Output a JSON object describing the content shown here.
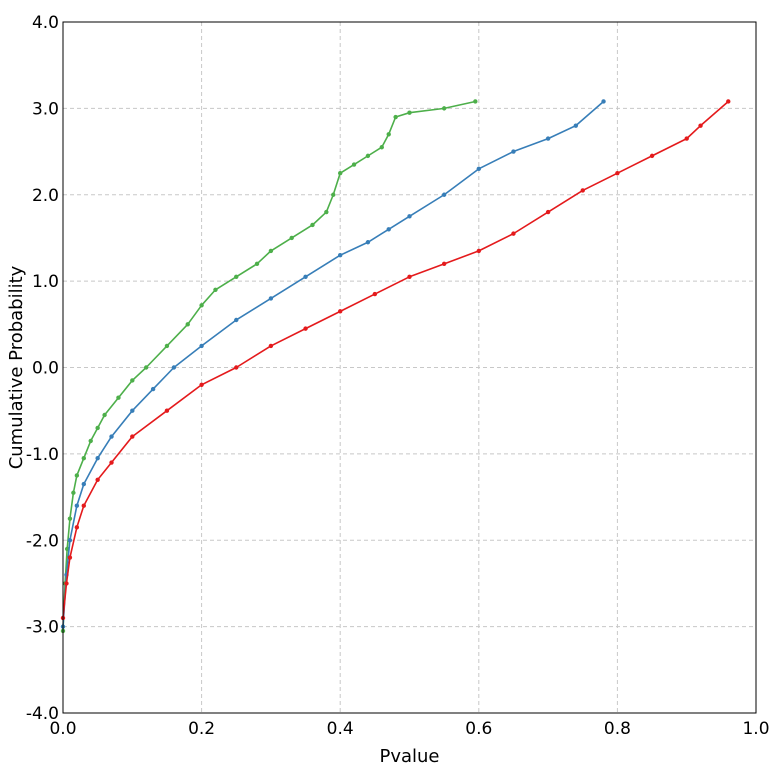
{
  "chart_data": {
    "type": "line",
    "xlabel": "Pvalue",
    "ylabel": "Cumulative Probability",
    "xlim": [
      0.0,
      1.0
    ],
    "ylim": [
      -4.0,
      4.0
    ],
    "x_ticks": [
      "0.0",
      "0.2",
      "0.4",
      "0.6",
      "0.8",
      "1.0"
    ],
    "y_ticks": [
      "-4.0",
      "-3.0",
      "-2.0",
      "-1.0",
      "0.0",
      "1.0",
      "2.0",
      "3.0",
      "4.0"
    ],
    "grid": true,
    "series": [
      {
        "color": "#4daf4a",
        "points": [
          [
            0.0,
            -3.05
          ],
          [
            0.003,
            -2.5
          ],
          [
            0.006,
            -2.1
          ],
          [
            0.01,
            -1.75
          ],
          [
            0.015,
            -1.45
          ],
          [
            0.02,
            -1.25
          ],
          [
            0.03,
            -1.05
          ],
          [
            0.04,
            -0.85
          ],
          [
            0.05,
            -0.7
          ],
          [
            0.06,
            -0.55
          ],
          [
            0.08,
            -0.35
          ],
          [
            0.1,
            -0.15
          ],
          [
            0.12,
            0.0
          ],
          [
            0.15,
            0.25
          ],
          [
            0.18,
            0.5
          ],
          [
            0.2,
            0.72
          ],
          [
            0.22,
            0.9
          ],
          [
            0.25,
            1.05
          ],
          [
            0.28,
            1.2
          ],
          [
            0.3,
            1.35
          ],
          [
            0.33,
            1.5
          ],
          [
            0.36,
            1.65
          ],
          [
            0.38,
            1.8
          ],
          [
            0.39,
            2.0
          ],
          [
            0.4,
            2.25
          ],
          [
            0.42,
            2.35
          ],
          [
            0.44,
            2.45
          ],
          [
            0.46,
            2.55
          ],
          [
            0.47,
            2.7
          ],
          [
            0.48,
            2.9
          ],
          [
            0.5,
            2.95
          ],
          [
            0.55,
            3.0
          ],
          [
            0.595,
            3.08
          ]
        ]
      },
      {
        "color": "#377eb8",
        "points": [
          [
            0.0,
            -3.0
          ],
          [
            0.005,
            -2.4
          ],
          [
            0.01,
            -2.0
          ],
          [
            0.02,
            -1.6
          ],
          [
            0.03,
            -1.35
          ],
          [
            0.05,
            -1.05
          ],
          [
            0.07,
            -0.8
          ],
          [
            0.1,
            -0.5
          ],
          [
            0.13,
            -0.25
          ],
          [
            0.16,
            0.0
          ],
          [
            0.2,
            0.25
          ],
          [
            0.25,
            0.55
          ],
          [
            0.3,
            0.8
          ],
          [
            0.35,
            1.05
          ],
          [
            0.4,
            1.3
          ],
          [
            0.44,
            1.45
          ],
          [
            0.47,
            1.6
          ],
          [
            0.5,
            1.75
          ],
          [
            0.55,
            2.0
          ],
          [
            0.6,
            2.3
          ],
          [
            0.65,
            2.5
          ],
          [
            0.7,
            2.65
          ],
          [
            0.74,
            2.8
          ],
          [
            0.78,
            3.08
          ]
        ]
      },
      {
        "color": "#e41a1c",
        "points": [
          [
            0.0,
            -2.9
          ],
          [
            0.005,
            -2.5
          ],
          [
            0.01,
            -2.2
          ],
          [
            0.02,
            -1.85
          ],
          [
            0.03,
            -1.6
          ],
          [
            0.05,
            -1.3
          ],
          [
            0.07,
            -1.1
          ],
          [
            0.1,
            -0.8
          ],
          [
            0.15,
            -0.5
          ],
          [
            0.2,
            -0.2
          ],
          [
            0.25,
            0.0
          ],
          [
            0.3,
            0.25
          ],
          [
            0.35,
            0.45
          ],
          [
            0.4,
            0.65
          ],
          [
            0.45,
            0.85
          ],
          [
            0.5,
            1.05
          ],
          [
            0.55,
            1.2
          ],
          [
            0.6,
            1.35
          ],
          [
            0.65,
            1.55
          ],
          [
            0.7,
            1.8
          ],
          [
            0.75,
            2.05
          ],
          [
            0.8,
            2.25
          ],
          [
            0.85,
            2.45
          ],
          [
            0.9,
            2.65
          ],
          [
            0.92,
            2.8
          ],
          [
            0.96,
            3.08
          ]
        ]
      }
    ]
  }
}
